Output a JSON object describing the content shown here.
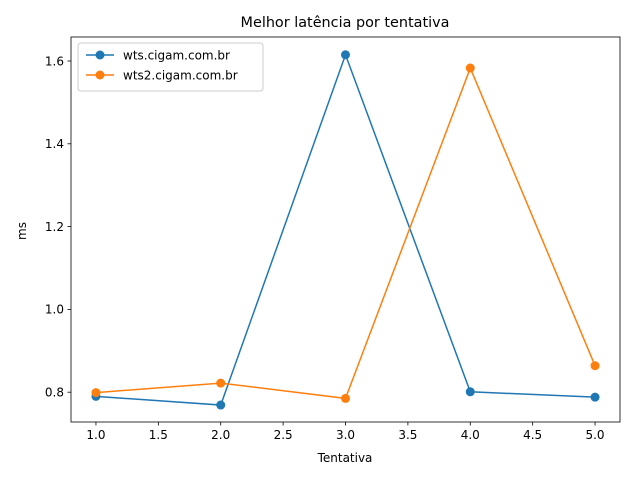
{
  "chart_data": {
    "type": "line",
    "title": "Melhor latência por tentativa",
    "xlabel": "Tentativa",
    "ylabel": "ms",
    "xlim": [
      0.8,
      5.2
    ],
    "ylim": [
      0.728,
      1.658
    ],
    "xticks": [
      1.0,
      1.5,
      2.0,
      2.5,
      3.0,
      3.5,
      4.0,
      4.5,
      5.0
    ],
    "xtick_labels": [
      "1.0",
      "1.5",
      "2.0",
      "2.5",
      "3.0",
      "3.5",
      "4.0",
      "4.5",
      "5.0"
    ],
    "yticks": [
      0.8,
      1.0,
      1.2,
      1.4,
      1.6
    ],
    "ytick_labels": [
      "0.8",
      "1.0",
      "1.2",
      "1.4",
      "1.6"
    ],
    "grid": false,
    "legend": "top-left",
    "x": [
      1,
      2,
      3,
      4,
      5
    ],
    "series": [
      {
        "name": "wts.cigam.com.br",
        "color": "#1f77b4",
        "values": [
          0.79,
          0.769,
          1.615,
          0.801,
          0.788
        ]
      },
      {
        "name": "wts2.cigam.com.br",
        "color": "#ff7f0e",
        "values": [
          0.799,
          0.822,
          0.785,
          1.583,
          0.864
        ]
      }
    ]
  }
}
